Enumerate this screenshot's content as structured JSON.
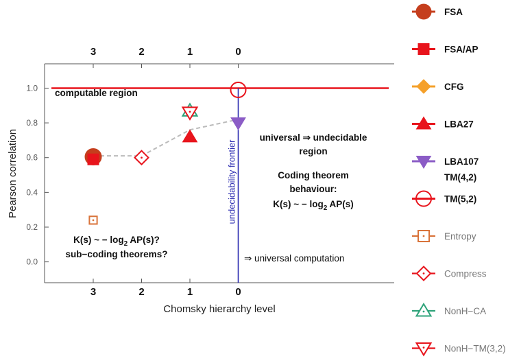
{
  "chart_data": {
    "type": "scatter",
    "xlabel": "Chomsky hierarchy level",
    "ylabel": "Pearson correlation",
    "x_ticks_top": [
      "3",
      "2",
      "1",
      "0"
    ],
    "x_ticks_bottom": [
      "3",
      "2",
      "1",
      "0"
    ],
    "y_ticks": [
      "0.0",
      "0.2",
      "0.4",
      "0.6",
      "0.8",
      "1.0"
    ],
    "ylim": [
      -0.12,
      1.14
    ],
    "legend_position": "right",
    "reference_line": {
      "y": 1.0,
      "color": "#e8141c"
    },
    "frontier": {
      "x": 0,
      "label": "undecidability frontier",
      "color": "#2b2bb0"
    },
    "trend": {
      "x": [
        3,
        2,
        1,
        0
      ],
      "y": [
        0.61,
        0.61,
        0.76,
        0.82
      ],
      "color": "#bbbbbb"
    },
    "series": [
      {
        "name": "FSA",
        "marker": "circle",
        "filled": true,
        "color": "#c53e1d",
        "x": 3,
        "y": 0.605
      },
      {
        "name": "FSA/AP",
        "marker": "square",
        "filled": true,
        "color": "#e8141c",
        "x": 3,
        "y": 0.59
      },
      {
        "name": "CFG",
        "marker": "diamond",
        "filled": true,
        "color": "#f5a02a",
        "x": 2,
        "y": 0.6
      },
      {
        "name": "LBA27",
        "marker": "triangle-up",
        "filled": true,
        "color": "#e8141c",
        "x": 1,
        "y": 0.72
      },
      {
        "name": "LBA107",
        "name2": "TM(4,2)",
        "marker": "triangle-down",
        "filled": true,
        "color": "#8b5cc6",
        "x": 0,
        "y": 0.8
      },
      {
        "name": "TM(5,2)",
        "marker": "circle-line",
        "filled": false,
        "color": "#e8141c",
        "x": 0,
        "y": 0.99
      },
      {
        "name": "Entropy",
        "marker": "square",
        "filled": false,
        "color": "#d9733a",
        "x": 3,
        "y": 0.24
      },
      {
        "name": "Compress",
        "marker": "diamond",
        "filled": false,
        "color": "#e8141c",
        "x": 2,
        "y": 0.6
      },
      {
        "name": "NonH−CA",
        "marker": "triangle-up",
        "filled": false,
        "color": "#2ea37a",
        "x": 1,
        "y": 0.87
      },
      {
        "name": "NonH−TM(3,2)",
        "marker": "triangle-down",
        "filled": false,
        "color": "#e8141c",
        "x": 1,
        "y": 0.86
      }
    ],
    "annotations": {
      "computable": "computable region",
      "universal_1": "universal ⇒ undecidable",
      "universal_2": "region",
      "coding_1": "Coding theorem",
      "coding_2": "behaviour:",
      "coding_3a": "K(s) ~ − log",
      "coding_3sub": "2",
      "coding_3b": " AP(s)",
      "sub_1a": "K(s) ~ − log",
      "sub_1sub": "2",
      "sub_1b": " AP(s)?",
      "sub_2": "sub−coding theorems?",
      "universal_comp": "⇒ universal computation"
    }
  }
}
